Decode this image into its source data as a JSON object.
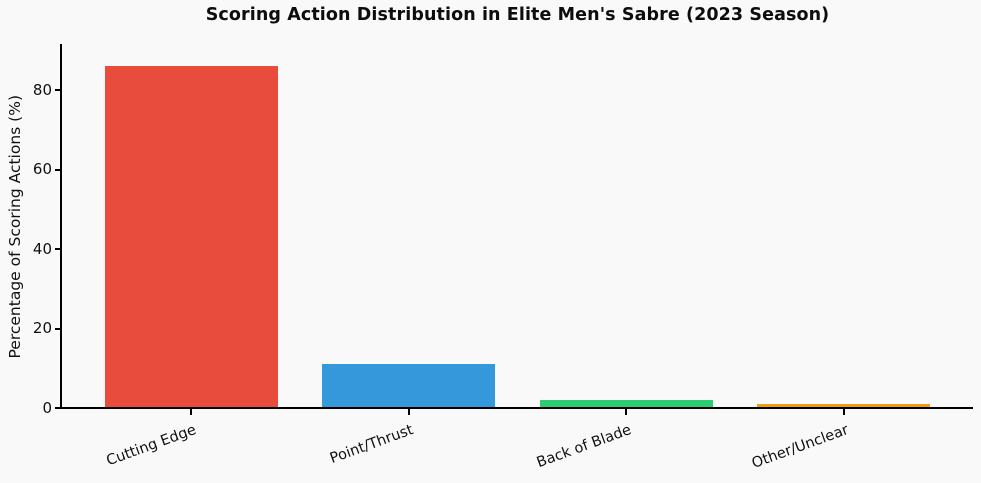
{
  "figure": {
    "background_color": "#f9f9f9",
    "axis_color": "#000000"
  },
  "chart_data": {
    "type": "bar",
    "title": "Scoring Action Distribution in Elite Men's Sabre (2023 Season)",
    "xlabel": "",
    "ylabel": "Percentage of Scoring Actions (%)",
    "categories": [
      "Cutting Edge",
      "Point/Thrust",
      "Back of Blade",
      "Other/Unclear"
    ],
    "values": [
      86,
      11,
      2,
      1
    ],
    "bar_colors": [
      "#e74c3c",
      "#3498db",
      "#2ecc71",
      "#f39c12"
    ],
    "yticks": [
      0,
      20,
      40,
      60,
      80
    ],
    "ylim": [
      0,
      91.3
    ],
    "grid": false,
    "legend": "none",
    "x_tick_label_rotation_deg": 20
  }
}
